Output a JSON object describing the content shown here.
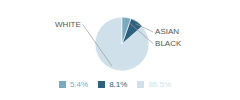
{
  "chart_data": {
    "type": "pie",
    "categories": [
      "WHITE",
      "ASIAN",
      "BLACK"
    ],
    "values": [
      86.5,
      8.1,
      5.4
    ],
    "value_labels": [
      "86.5%",
      "8.1%",
      "5.4%"
    ],
    "colors": [
      "#cfe0ea",
      "#2e6080",
      "#7aaabf"
    ],
    "legend": "bottom"
  }
}
